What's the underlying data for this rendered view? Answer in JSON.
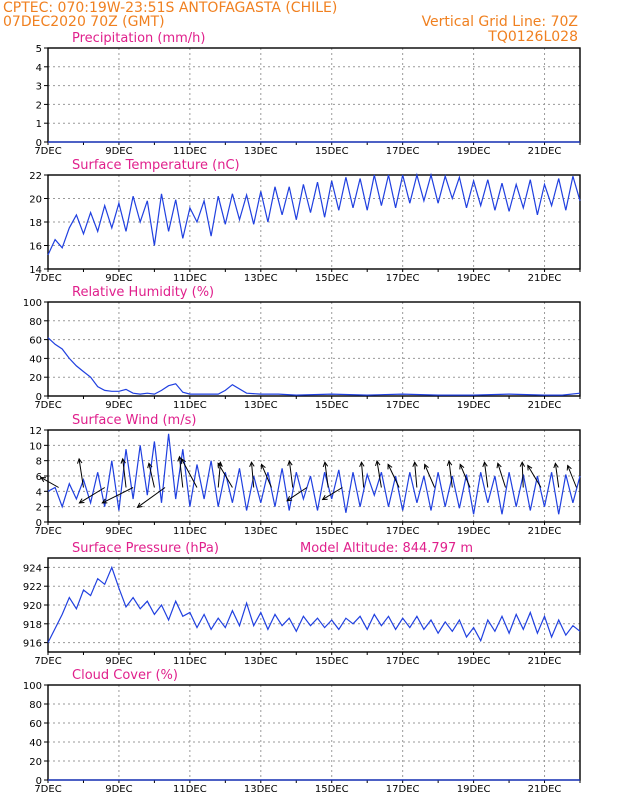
{
  "header": {
    "line1_left": "CPTEC:   070:19W-23:51S  ANTOFAGASTA (CHILE)",
    "line2_left": "07DEC2020 70Z (GMT)",
    "line2_right": "Vertical Grid Line: 70Z",
    "line3_right": "TQ0126L028"
  },
  "colors": {
    "header": "#f08020",
    "title": "#e0208c",
    "line": "#2040e0",
    "frame": "#000000",
    "grid": "#9a9a9a"
  },
  "x_ticks": [
    "7DEC",
    "9DEC",
    "11DEC",
    "13DEC",
    "15DEC",
    "17DEC",
    "19DEC",
    "21DEC"
  ],
  "chart_data": [
    {
      "type": "line",
      "title": "Precipitation (mm/h)",
      "ylim": [
        0,
        5
      ],
      "yticks": [
        0,
        1,
        2,
        3,
        4,
        5
      ],
      "x": [
        7,
        22
      ],
      "values": [
        0,
        0
      ]
    },
    {
      "type": "line",
      "title": "Surface Temperature (nC)",
      "ylim": [
        14,
        22
      ],
      "yticks": [
        14,
        16,
        18,
        20,
        22
      ],
      "x": [
        7.0,
        7.2,
        7.4,
        7.6,
        7.8,
        8.0,
        8.2,
        8.4,
        8.6,
        8.8,
        9.0,
        9.2,
        9.4,
        9.6,
        9.8,
        10.0,
        10.2,
        10.4,
        10.6,
        10.8,
        11.0,
        11.2,
        11.4,
        11.6,
        11.8,
        12.0,
        12.2,
        12.4,
        12.6,
        12.8,
        13.0,
        13.2,
        13.4,
        13.6,
        13.8,
        14.0,
        14.2,
        14.4,
        14.6,
        14.8,
        15.0,
        15.2,
        15.4,
        15.6,
        15.8,
        16.0,
        16.2,
        16.4,
        16.6,
        16.8,
        17.0,
        17.2,
        17.4,
        17.6,
        17.8,
        18.0,
        18.2,
        18.4,
        18.6,
        18.8,
        19.0,
        19.2,
        19.4,
        19.6,
        19.8,
        20.0,
        20.2,
        20.4,
        20.6,
        20.8,
        21.0,
        21.2,
        21.4,
        21.6,
        21.8,
        22.0
      ],
      "values": [
        15.2,
        16.5,
        15.8,
        17.5,
        18.6,
        17.0,
        18.8,
        17.2,
        19.4,
        17.5,
        19.6,
        17.2,
        20.2,
        18.0,
        19.8,
        16.0,
        20.4,
        17.2,
        19.9,
        16.6,
        19.2,
        18.0,
        19.8,
        16.8,
        20.2,
        17.8,
        20.4,
        18.2,
        20.3,
        17.8,
        20.6,
        18.0,
        21.0,
        18.6,
        21.0,
        18.2,
        21.2,
        18.8,
        21.4,
        18.4,
        21.5,
        19.0,
        21.8,
        19.2,
        21.7,
        19.0,
        22.0,
        19.4,
        22.0,
        19.2,
        22.0,
        19.6,
        22.0,
        19.8,
        22.0,
        19.6,
        21.9,
        20.0,
        21.8,
        19.2,
        21.5,
        19.4,
        21.6,
        19.0,
        21.3,
        18.9,
        21.2,
        19.2,
        21.6,
        18.6,
        21.2,
        19.4,
        21.7,
        19.0,
        21.9,
        19.8
      ]
    },
    {
      "type": "line",
      "title": "Relative Humidity (%)",
      "ylim": [
        0,
        100
      ],
      "yticks": [
        0,
        20,
        40,
        60,
        80,
        100
      ],
      "x": [
        7.0,
        7.2,
        7.4,
        7.6,
        7.8,
        8.0,
        8.2,
        8.4,
        8.6,
        8.8,
        9.0,
        9.2,
        9.4,
        9.6,
        9.8,
        10.0,
        10.2,
        10.4,
        10.6,
        10.8,
        11.0,
        11.4,
        11.8,
        12.0,
        12.2,
        12.6,
        13.0,
        13.5,
        14.0,
        15.0,
        16.0,
        17.0,
        18.0,
        19.0,
        20.0,
        21.0,
        21.5,
        22.0
      ],
      "values": [
        62,
        55,
        50,
        40,
        32,
        26,
        20,
        10,
        6,
        5,
        5,
        7,
        3,
        2,
        3,
        2,
        6,
        11,
        13,
        4,
        2,
        2,
        2,
        6,
        12,
        3,
        2,
        2,
        1,
        2,
        1,
        2,
        1,
        1,
        2,
        1,
        1,
        3
      ]
    },
    {
      "type": "line",
      "title": "Surface Wind (m/s)",
      "ylim": [
        0,
        12
      ],
      "yticks": [
        0,
        2,
        4,
        6,
        8,
        10,
        12
      ],
      "x": [
        7.0,
        7.2,
        7.4,
        7.6,
        7.8,
        8.0,
        8.2,
        8.4,
        8.6,
        8.8,
        9.0,
        9.2,
        9.4,
        9.6,
        9.8,
        10.0,
        10.2,
        10.4,
        10.6,
        10.8,
        11.0,
        11.2,
        11.4,
        11.6,
        11.8,
        12.0,
        12.2,
        12.4,
        12.6,
        12.8,
        13.0,
        13.2,
        13.4,
        13.6,
        13.8,
        14.0,
        14.2,
        14.4,
        14.6,
        14.8,
        15.0,
        15.2,
        15.4,
        15.6,
        15.8,
        16.0,
        16.2,
        16.4,
        16.6,
        16.8,
        17.0,
        17.2,
        17.4,
        17.6,
        17.8,
        18.0,
        18.2,
        18.4,
        18.6,
        18.8,
        19.0,
        19.2,
        19.4,
        19.6,
        19.8,
        20.0,
        20.2,
        20.4,
        20.6,
        20.8,
        21.0,
        21.2,
        21.4,
        21.6,
        21.8,
        22.0
      ],
      "values": [
        4.0,
        4.5,
        2.0,
        5.0,
        3.0,
        5.5,
        2.5,
        6.5,
        2.0,
        8.0,
        1.5,
        9.5,
        3.0,
        10.0,
        3.5,
        10.5,
        2.5,
        11.5,
        3.0,
        9.5,
        2.0,
        7.5,
        3.0,
        8.0,
        2.0,
        6.5,
        2.5,
        7.0,
        1.5,
        6.0,
        2.5,
        6.5,
        2.0,
        7.0,
        1.5,
        6.5,
        3.0,
        6.0,
        1.5,
        6.5,
        3.0,
        6.8,
        1.2,
        6.5,
        2.0,
        6.2,
        3.5,
        6.5,
        2.0,
        6.0,
        1.5,
        6.5,
        2.5,
        6.0,
        1.5,
        6.5,
        2.0,
        6.0,
        1.8,
        6.2,
        1.0,
        6.5,
        2.5,
        6.0,
        1.0,
        6.5,
        2.0,
        6.2,
        1.5,
        6.0,
        2.0,
        6.5,
        1.0,
        6.2,
        2.5,
        6.0
      ],
      "vectors": [
        {
          "x": 7.3,
          "u": -1.6,
          "v": 0.9
        },
        {
          "x": 8.0,
          "u": -0.4,
          "v": 2.6
        },
        {
          "x": 8.6,
          "u": -2.3,
          "v": -1.4
        },
        {
          "x": 9.2,
          "u": -0.3,
          "v": 2.6
        },
        {
          "x": 9.4,
          "u": -2.8,
          "v": -1.4
        },
        {
          "x": 10.0,
          "u": -0.5,
          "v": 2.2
        },
        {
          "x": 10.3,
          "u": -2.5,
          "v": -1.8
        },
        {
          "x": 10.8,
          "u": -0.3,
          "v": 2.8
        },
        {
          "x": 11.2,
          "u": -1.4,
          "v": 2.6
        },
        {
          "x": 11.8,
          "u": 0.2,
          "v": 2.3
        },
        {
          "x": 12.2,
          "u": -1.3,
          "v": 2.2
        },
        {
          "x": 12.8,
          "u": -0.2,
          "v": 2.3
        },
        {
          "x": 13.3,
          "u": -0.9,
          "v": 2.1
        },
        {
          "x": 13.9,
          "u": -0.3,
          "v": 2.4
        },
        {
          "x": 14.3,
          "u": -1.8,
          "v": -1.2
        },
        {
          "x": 14.9,
          "u": -0.3,
          "v": 2.3
        },
        {
          "x": 15.3,
          "u": -1.8,
          "v": -1.1
        },
        {
          "x": 15.9,
          "u": -0.2,
          "v": 2.3
        },
        {
          "x": 16.4,
          "u": -0.4,
          "v": 2.4
        },
        {
          "x": 16.9,
          "u": -1.0,
          "v": 2.1
        },
        {
          "x": 17.4,
          "u": -0.2,
          "v": 2.3
        },
        {
          "x": 17.9,
          "u": -0.9,
          "v": 2.1
        },
        {
          "x": 18.4,
          "u": -0.3,
          "v": 2.4
        },
        {
          "x": 18.9,
          "u": -0.9,
          "v": 2.1
        },
        {
          "x": 19.4,
          "u": -0.3,
          "v": 2.3
        },
        {
          "x": 19.9,
          "u": -0.7,
          "v": 2.2
        },
        {
          "x": 20.4,
          "u": -0.1,
          "v": 2.3
        },
        {
          "x": 20.9,
          "u": -1.2,
          "v": 2.0
        },
        {
          "x": 21.4,
          "u": -0.3,
          "v": 2.2
        },
        {
          "x": 21.9,
          "u": -0.8,
          "v": 2.0
        }
      ]
    },
    {
      "type": "line",
      "title": "Surface Pressure (hPa)",
      "annotation": "Model Altitude: 844.797 m",
      "ylim": [
        915,
        925
      ],
      "yticks": [
        916,
        918,
        920,
        922,
        924
      ],
      "x": [
        7.0,
        7.2,
        7.4,
        7.6,
        7.8,
        8.0,
        8.2,
        8.4,
        8.6,
        8.8,
        9.0,
        9.2,
        9.4,
        9.6,
        9.8,
        10.0,
        10.2,
        10.4,
        10.6,
        10.8,
        11.0,
        11.2,
        11.4,
        11.6,
        11.8,
        12.0,
        12.2,
        12.4,
        12.6,
        12.8,
        13.0,
        13.2,
        13.4,
        13.6,
        13.8,
        14.0,
        14.2,
        14.4,
        14.6,
        14.8,
        15.0,
        15.2,
        15.4,
        15.6,
        15.8,
        16.0,
        16.2,
        16.4,
        16.6,
        16.8,
        17.0,
        17.2,
        17.4,
        17.6,
        17.8,
        18.0,
        18.2,
        18.4,
        18.6,
        18.8,
        19.0,
        19.2,
        19.4,
        19.6,
        19.8,
        20.0,
        20.2,
        20.4,
        20.6,
        20.8,
        21.0,
        21.2,
        21.4,
        21.6,
        21.8,
        22.0
      ],
      "values": [
        916.0,
        917.5,
        919.0,
        920.8,
        919.6,
        921.6,
        921.0,
        922.8,
        922.2,
        924.0,
        921.8,
        919.8,
        920.8,
        919.6,
        920.4,
        919.0,
        920.0,
        918.4,
        920.4,
        918.8,
        919.2,
        917.6,
        919.0,
        917.4,
        918.6,
        917.6,
        919.4,
        917.8,
        920.2,
        917.8,
        919.2,
        917.4,
        919.0,
        917.8,
        918.6,
        917.2,
        918.8,
        917.8,
        918.6,
        917.6,
        918.4,
        917.4,
        918.6,
        918.0,
        918.8,
        917.4,
        919.0,
        917.8,
        918.8,
        917.4,
        918.6,
        917.6,
        918.8,
        917.4,
        918.4,
        917.0,
        918.2,
        917.2,
        918.4,
        916.6,
        917.6,
        916.2,
        918.4,
        917.2,
        918.8,
        917.0,
        919.0,
        917.4,
        919.2,
        917.0,
        918.8,
        916.6,
        918.4,
        916.8,
        917.8,
        917.2
      ]
    },
    {
      "type": "line",
      "title": "Cloud Cover (%)",
      "ylim": [
        0,
        100
      ],
      "yticks": [
        0,
        20,
        40,
        60,
        80,
        100
      ],
      "x": [
        7,
        22
      ],
      "values": [
        0,
        0
      ]
    }
  ]
}
